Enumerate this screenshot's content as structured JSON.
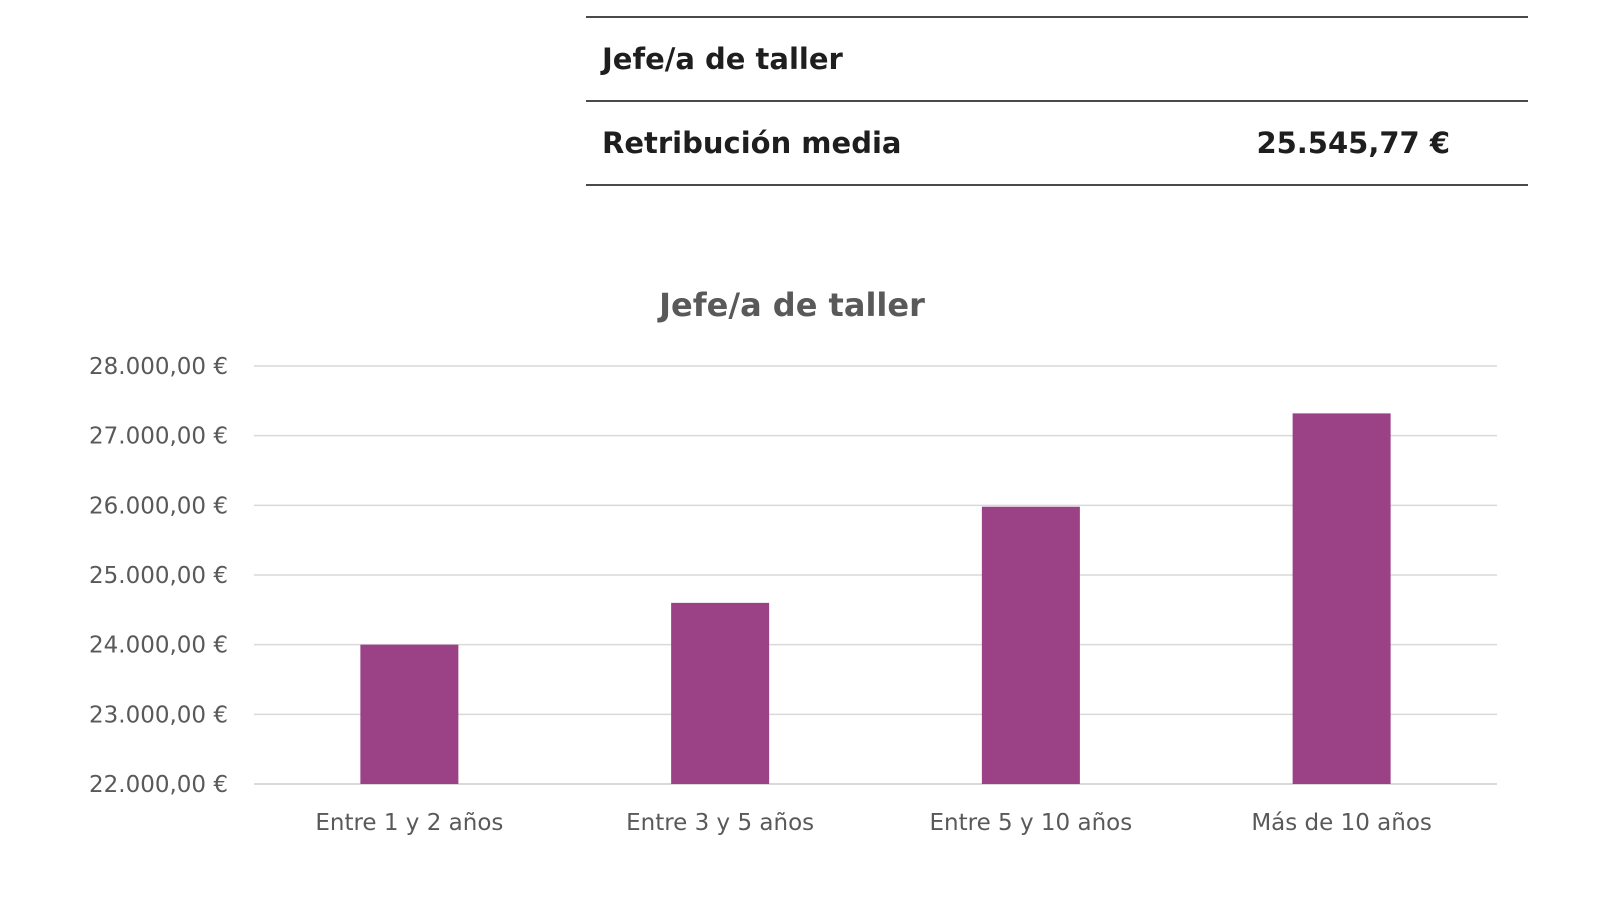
{
  "summary": {
    "title": "Jefe/a de taller",
    "metric_label": "Retribución media",
    "metric_value": "25.545,77 €"
  },
  "chart_data": {
    "type": "bar",
    "title": "Jefe/a  de taller",
    "xlabel": "",
    "ylabel": "",
    "categories": [
      "Entre 1 y 2 años",
      "Entre 3 y 5 años",
      "Entre 5 y 10 años",
      "Más de 10 años"
    ],
    "values": [
      24000,
      24600,
      25980,
      27320
    ],
    "ylim": [
      22000,
      28000
    ],
    "yticks": [
      22000,
      23000,
      24000,
      25000,
      26000,
      27000,
      28000
    ],
    "ytick_labels": [
      "22.000,00 €",
      "23.000,00 €",
      "24.000,00 €",
      "25.000,00 €",
      "26.000,00 €",
      "27.000,00 €",
      "28.000,00 €"
    ],
    "bar_color": "#9b4287",
    "grid_color": "#d9d9d9",
    "grid": true,
    "legend": false
  }
}
